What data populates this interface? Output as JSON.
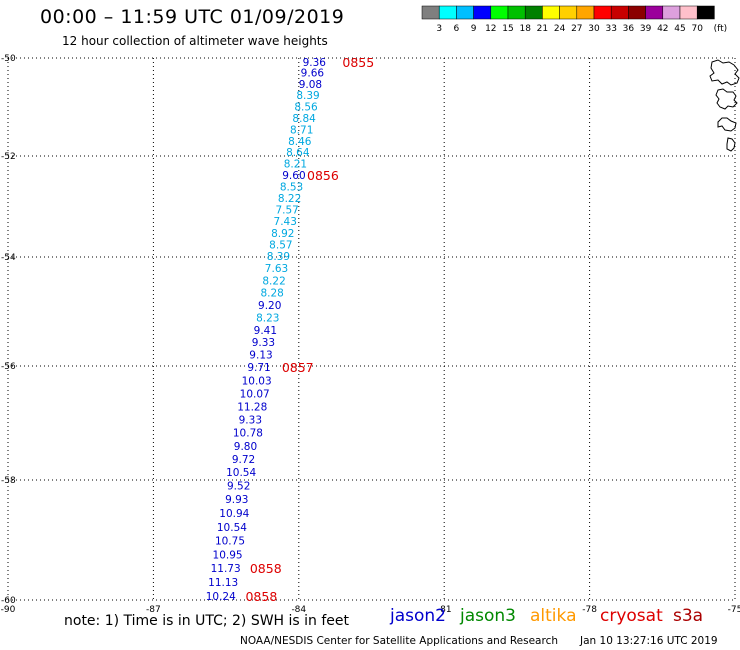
{
  "header": {
    "title": "00:00 – 11:59 UTC 01/09/2019",
    "subtitle": "12 hour collection of altimeter wave heights"
  },
  "legend": {
    "colors": [
      "#7f7f7f",
      "#00ffff",
      "#00bfff",
      "#0000ff",
      "#00ff00",
      "#00c000",
      "#008000",
      "#ffff00",
      "#ffd000",
      "#ffa500",
      "#ff0000",
      "#c80000",
      "#8b0000",
      "#9b009b",
      "#dda0dd",
      "#ffc0cb",
      "#000000"
    ],
    "labels": [
      "3",
      "6",
      "9",
      "12",
      "15",
      "18",
      "21",
      "24",
      "27",
      "30",
      "33",
      "36",
      "39",
      "42",
      "45",
      "70",
      "(ft)"
    ]
  },
  "footer": {
    "note": "note:  1) Time is in UTC;  2) SWH is in feet",
    "credit": "NOAA/NESDIS Center for Satellite Applications and Research",
    "timestamp": "Jan 10 13:27:16 UTC 2019",
    "satellites": [
      {
        "name": "jason2",
        "color": "#0000cc"
      },
      {
        "name": "jason3",
        "color": "#008800"
      },
      {
        "name": "altika",
        "color": "#ff9900"
      },
      {
        "name": "cryosat",
        "color": "#dd0000"
      },
      {
        "name": "s3a",
        "color": "#aa0000"
      }
    ]
  },
  "chart_data": {
    "type": "scatter",
    "xlim": [
      -90,
      -75
    ],
    "ylim": [
      -60,
      -50
    ],
    "x_ticks": [
      "-90",
      "-87",
      "-84",
      "-81",
      "-78",
      "-75"
    ],
    "x_tick_values": [
      -90,
      -87,
      -84,
      -81,
      -78,
      -75
    ],
    "y_ticks": [
      "-50",
      "-52",
      "-54",
      "-56",
      "-58",
      "-60"
    ],
    "y_tick_values": [
      -50,
      -52,
      -54,
      -56,
      -58,
      -60
    ],
    "grid": true,
    "color_scale": {
      "cyan_below": 9,
      "blue_from": 9
    },
    "points": [
      {
        "lon": -83.68,
        "lat": -50.08,
        "value": "9.36"
      },
      {
        "lon": -83.72,
        "lat": -50.3,
        "value": "9.66"
      },
      {
        "lon": -83.76,
        "lat": -50.53,
        "value": "9.08"
      },
      {
        "lon": -83.81,
        "lat": -50.76,
        "value": "8.39"
      },
      {
        "lon": -83.85,
        "lat": -50.99,
        "value": "8.56"
      },
      {
        "lon": -83.89,
        "lat": -51.22,
        "value": "8.84"
      },
      {
        "lon": -83.94,
        "lat": -51.46,
        "value": "8.71"
      },
      {
        "lon": -83.98,
        "lat": -51.69,
        "value": "8.46"
      },
      {
        "lon": -84.02,
        "lat": -51.92,
        "value": "8.64"
      },
      {
        "lon": -84.07,
        "lat": -52.15,
        "value": "8.21"
      },
      {
        "lon": -84.1,
        "lat": -52.38,
        "value": "9.60"
      },
      {
        "lon": -84.15,
        "lat": -52.6,
        "value": "8.53"
      },
      {
        "lon": -84.19,
        "lat": -52.83,
        "value": "8.22"
      },
      {
        "lon": -84.24,
        "lat": -53.06,
        "value": "7.57"
      },
      {
        "lon": -84.28,
        "lat": -53.29,
        "value": "7.43"
      },
      {
        "lon": -84.33,
        "lat": -53.52,
        "value": "8.92"
      },
      {
        "lon": -84.37,
        "lat": -53.75,
        "value": "8.57"
      },
      {
        "lon": -84.42,
        "lat": -53.98,
        "value": "8.39"
      },
      {
        "lon": -84.46,
        "lat": -54.2,
        "value": "7.63"
      },
      {
        "lon": -84.51,
        "lat": -54.43,
        "value": "8.22"
      },
      {
        "lon": -84.55,
        "lat": -54.65,
        "value": "8.28"
      },
      {
        "lon": -84.6,
        "lat": -54.88,
        "value": "9.20"
      },
      {
        "lon": -84.64,
        "lat": -55.11,
        "value": "8.23"
      },
      {
        "lon": -84.69,
        "lat": -55.34,
        "value": "9.41"
      },
      {
        "lon": -84.73,
        "lat": -55.56,
        "value": "9.33"
      },
      {
        "lon": -84.78,
        "lat": -55.79,
        "value": "9.13"
      },
      {
        "lon": -84.82,
        "lat": -56.02,
        "value": "9.71"
      },
      {
        "lon": -84.87,
        "lat": -56.25,
        "value": "10.03"
      },
      {
        "lon": -84.91,
        "lat": -56.48,
        "value": "10.07"
      },
      {
        "lon": -84.96,
        "lat": -56.71,
        "value": "11.28"
      },
      {
        "lon": -85.0,
        "lat": -56.94,
        "value": "9.33"
      },
      {
        "lon": -85.05,
        "lat": -57.17,
        "value": "10.78"
      },
      {
        "lon": -85.1,
        "lat": -57.4,
        "value": "9.80"
      },
      {
        "lon": -85.14,
        "lat": -57.63,
        "value": "9.72"
      },
      {
        "lon": -85.19,
        "lat": -57.86,
        "value": "10.54"
      },
      {
        "lon": -85.24,
        "lat": -58.09,
        "value": "9.52"
      },
      {
        "lon": -85.28,
        "lat": -58.32,
        "value": "9.93"
      },
      {
        "lon": -85.33,
        "lat": -58.55,
        "value": "10.94"
      },
      {
        "lon": -85.38,
        "lat": -58.78,
        "value": "10.54"
      },
      {
        "lon": -85.42,
        "lat": -59.01,
        "value": "10.75"
      },
      {
        "lon": -85.47,
        "lat": -59.24,
        "value": "10.95"
      },
      {
        "lon": -85.51,
        "lat": -59.47,
        "value": "11.73"
      },
      {
        "lon": -85.56,
        "lat": -59.7,
        "value": "11.13"
      },
      {
        "lon": -85.61,
        "lat": -59.93,
        "value": "10.24"
      }
    ],
    "time_labels": [
      {
        "lon": -83.1,
        "lat": -50.08,
        "text": "0855"
      },
      {
        "lon": -83.83,
        "lat": -52.38,
        "text": "0856"
      },
      {
        "lon": -84.35,
        "lat": -56.02,
        "text": "0857"
      },
      {
        "lon": -85.01,
        "lat": -59.47,
        "text": "0858"
      },
      {
        "lon": -85.1,
        "lat": -59.93,
        "text": "0858"
      }
    ]
  }
}
